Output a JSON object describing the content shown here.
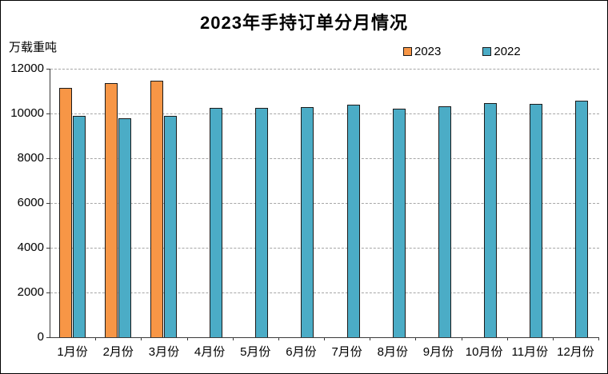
{
  "title": "2023年手持订单分月情况",
  "y_axis_unit": "万载重吨",
  "legend": {
    "items": [
      {
        "label": "2023",
        "color": "#F79646"
      },
      {
        "label": "2022",
        "color": "#4BACC6"
      }
    ]
  },
  "chart_data": {
    "type": "bar",
    "title": "2023年手持订单分月情况",
    "xlabel": "",
    "ylabel": "万载重吨",
    "ylim": [
      0,
      12000
    ],
    "ytick_interval": 2000,
    "ytick_labels": [
      "12000",
      "10000",
      "8000",
      "6000",
      "4000",
      "2000",
      "0"
    ],
    "grid": "horizontal-dashed",
    "legend_position": "top-right",
    "categories": [
      "1月份",
      "2月份",
      "3月份",
      "4月份",
      "5月份",
      "6月份",
      "7月份",
      "8月份",
      "9月份",
      "10月份",
      "11月份",
      "12月份"
    ],
    "series": [
      {
        "name": "2023",
        "color": "#F79646",
        "values": [
          11130,
          11365,
          11455,
          null,
          null,
          null,
          null,
          null,
          null,
          null,
          null,
          null
        ]
      },
      {
        "name": "2022",
        "color": "#4BACC6",
        "values": [
          9880,
          9800,
          9900,
          10255,
          10235,
          10290,
          10380,
          10210,
          10320,
          10450,
          10415,
          10565
        ]
      }
    ]
  }
}
